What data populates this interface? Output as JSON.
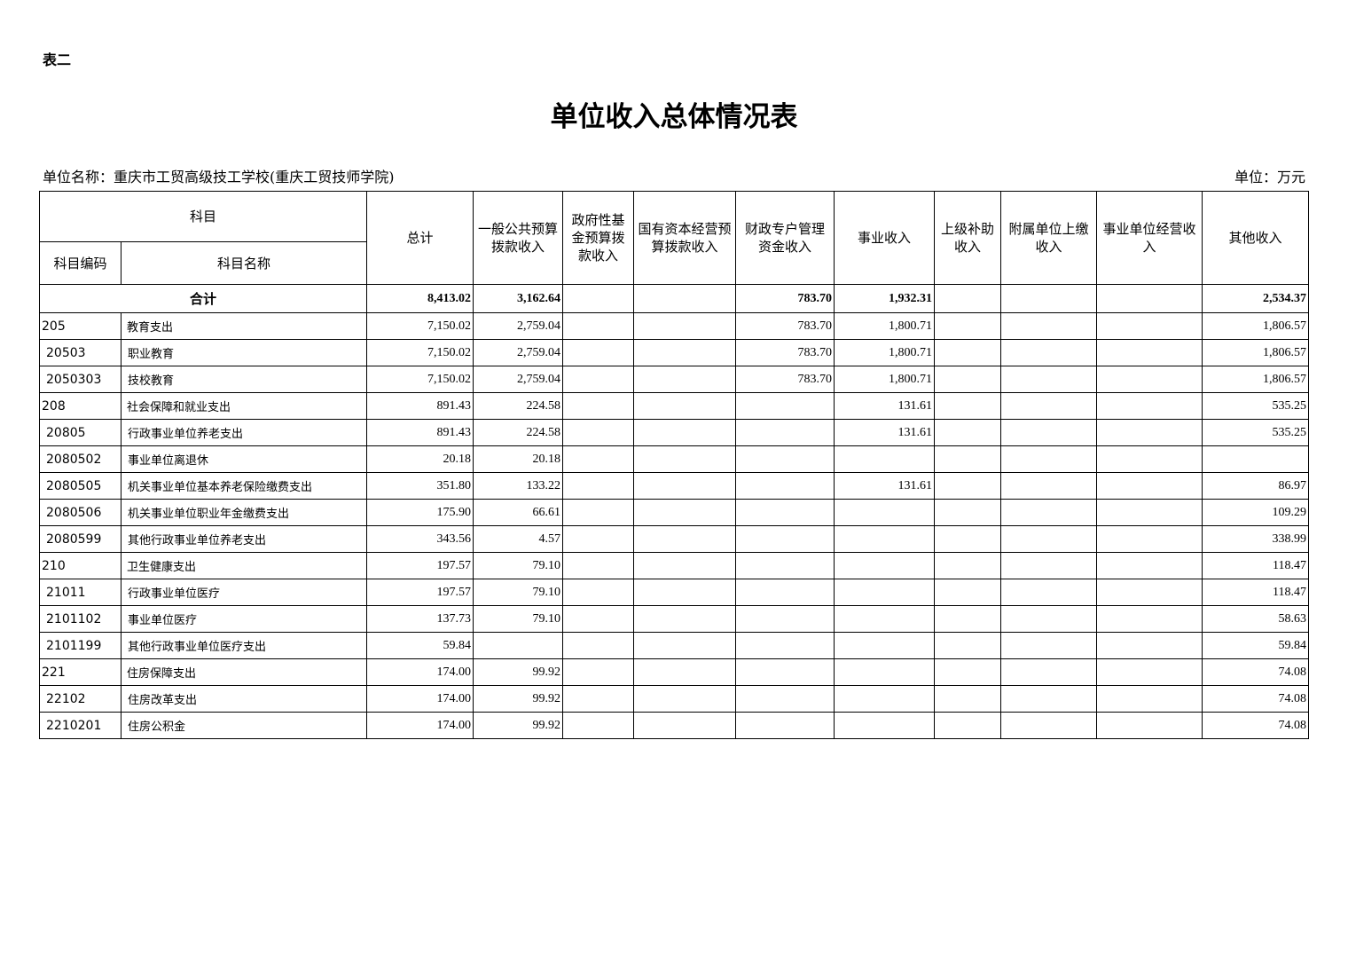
{
  "doc_label": "表二",
  "title": "单位收入总体情况表",
  "unit_name": "单位名称：重庆市工贸高级技工学校(重庆工贸技师学院)",
  "unit": "单位：万元",
  "table": {
    "header": {
      "subject": "科目",
      "code": "科目编码",
      "name": "科目名称",
      "columns": [
        "总计",
        "一般公共预算拨款收入",
        "政府性基金预算拨款收入",
        "国有资本经营预算拨款收入",
        "财政专户管理资金收入",
        "事业收入",
        "上级补助收入",
        "附属单位上缴收入",
        "事业单位经营收入",
        "其他收入"
      ]
    },
    "total": {
      "label": "合计",
      "values": [
        "8,413.02",
        "3,162.64",
        null,
        null,
        "783.70",
        "1,932.31",
        null,
        null,
        null,
        "2,534.37"
      ]
    },
    "rows": [
      {
        "code": "205",
        "name": "教育支出",
        "values": [
          "7,150.02",
          "2,759.04",
          null,
          null,
          "783.70",
          "1,800.71",
          null,
          null,
          null,
          "1,806.57"
        ]
      },
      {
        "code": "20503",
        "name": "职业教育",
        "values": [
          "7,150.02",
          "2,759.04",
          null,
          null,
          "783.70",
          "1,800.71",
          null,
          null,
          null,
          "1,806.57"
        ]
      },
      {
        "code": "2050303",
        "name": "技校教育",
        "values": [
          "7,150.02",
          "2,759.04",
          null,
          null,
          "783.70",
          "1,800.71",
          null,
          null,
          null,
          "1,806.57"
        ]
      },
      {
        "code": "208",
        "name": "社会保障和就业支出",
        "values": [
          "891.43",
          "224.58",
          null,
          null,
          null,
          "131.61",
          null,
          null,
          null,
          "535.25"
        ]
      },
      {
        "code": "20805",
        "name": "行政事业单位养老支出",
        "values": [
          "891.43",
          "224.58",
          null,
          null,
          null,
          "131.61",
          null,
          null,
          null,
          "535.25"
        ]
      },
      {
        "code": "2080502",
        "name": "事业单位离退休",
        "values": [
          "20.18",
          "20.18",
          null,
          null,
          null,
          null,
          null,
          null,
          null,
          null
        ]
      },
      {
        "code": "2080505",
        "name": "机关事业单位基本养老保险缴费支出",
        "values": [
          "351.80",
          "133.22",
          null,
          null,
          null,
          "131.61",
          null,
          null,
          null,
          "86.97"
        ]
      },
      {
        "code": "2080506",
        "name": "机关事业单位职业年金缴费支出",
        "values": [
          "175.90",
          "66.61",
          null,
          null,
          null,
          null,
          null,
          null,
          null,
          "109.29"
        ]
      },
      {
        "code": "2080599",
        "name": "其他行政事业单位养老支出",
        "values": [
          "343.56",
          "4.57",
          null,
          null,
          null,
          null,
          null,
          null,
          null,
          "338.99"
        ]
      },
      {
        "code": "210",
        "name": "卫生健康支出",
        "values": [
          "197.57",
          "79.10",
          null,
          null,
          null,
          null,
          null,
          null,
          null,
          "118.47"
        ]
      },
      {
        "code": "21011",
        "name": "行政事业单位医疗",
        "values": [
          "197.57",
          "79.10",
          null,
          null,
          null,
          null,
          null,
          null,
          null,
          "118.47"
        ]
      },
      {
        "code": "2101102",
        "name": "事业单位医疗",
        "values": [
          "137.73",
          "79.10",
          null,
          null,
          null,
          null,
          null,
          null,
          null,
          "58.63"
        ]
      },
      {
        "code": "2101199",
        "name": "其他行政事业单位医疗支出",
        "values": [
          "59.84",
          null,
          null,
          null,
          null,
          null,
          null,
          null,
          null,
          "59.84"
        ]
      },
      {
        "code": "221",
        "name": "住房保障支出",
        "values": [
          "174.00",
          "99.92",
          null,
          null,
          null,
          null,
          null,
          null,
          null,
          "74.08"
        ]
      },
      {
        "code": "22102",
        "name": "住房改革支出",
        "values": [
          "174.00",
          "99.92",
          null,
          null,
          null,
          null,
          null,
          null,
          null,
          "74.08"
        ]
      },
      {
        "code": "2210201",
        "name": "住房公积金",
        "values": [
          "174.00",
          "99.92",
          null,
          null,
          null,
          null,
          null,
          null,
          null,
          "74.08"
        ]
      }
    ]
  }
}
